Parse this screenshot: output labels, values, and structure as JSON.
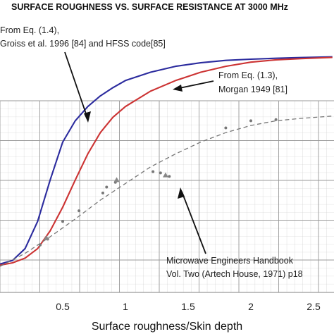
{
  "chart_data": {
    "type": "line",
    "title": "SURFACE ROUGHNESS VS. SURFACE RESISTANCE AT 3000 MHz",
    "xlabel": "Surface roughness/Skin depth",
    "ylabel": "",
    "xlim": [
      0,
      2.65
    ],
    "x_ticks": [
      "0.5",
      "1",
      "1.5",
      "2",
      "2.5"
    ],
    "grid": true,
    "series": [
      {
        "name": "From Eq. (1.4), Groiss et al. 1996 [84] and HFSS code[85]",
        "color": "#2b2b9e",
        "points": [
          [
            0.0,
            0.24
          ],
          [
            0.1,
            0.27
          ],
          [
            0.2,
            0.37
          ],
          [
            0.3,
            0.6
          ],
          [
            0.4,
            0.95
          ],
          [
            0.5,
            1.27
          ],
          [
            0.6,
            1.45
          ],
          [
            0.7,
            1.57
          ],
          [
            0.8,
            1.66
          ],
          [
            0.9,
            1.73
          ],
          [
            1.0,
            1.79
          ],
          [
            1.2,
            1.86
          ],
          [
            1.4,
            1.91
          ],
          [
            1.6,
            1.94
          ],
          [
            1.8,
            1.96
          ],
          [
            2.0,
            1.97
          ],
          [
            2.2,
            1.978
          ],
          [
            2.4,
            1.984
          ],
          [
            2.65,
            1.99
          ]
        ]
      },
      {
        "name": "From Eq. (1.3), Morgan 1949 [81]",
        "color": "#cc3333",
        "points": [
          [
            0.0,
            0.23
          ],
          [
            0.1,
            0.25
          ],
          [
            0.2,
            0.29
          ],
          [
            0.3,
            0.37
          ],
          [
            0.4,
            0.52
          ],
          [
            0.5,
            0.72
          ],
          [
            0.6,
            0.95
          ],
          [
            0.7,
            1.17
          ],
          [
            0.8,
            1.35
          ],
          [
            0.9,
            1.48
          ],
          [
            1.0,
            1.57
          ],
          [
            1.2,
            1.7
          ],
          [
            1.4,
            1.79
          ],
          [
            1.6,
            1.86
          ],
          [
            1.8,
            1.91
          ],
          [
            2.0,
            1.945
          ],
          [
            2.2,
            1.965
          ],
          [
            2.4,
            1.975
          ],
          [
            2.65,
            1.985
          ]
        ]
      },
      {
        "name": "Microwave Engineers Handbook Vol. Two (Artech House, 1971) p18",
        "color": "#777777",
        "dashed": true,
        "points": [
          [
            0.0,
            0.22
          ],
          [
            0.2,
            0.33
          ],
          [
            0.4,
            0.47
          ],
          [
            0.6,
            0.62
          ],
          [
            0.8,
            0.78
          ],
          [
            1.0,
            0.92
          ],
          [
            1.2,
            1.06
          ],
          [
            1.4,
            1.17
          ],
          [
            1.6,
            1.27
          ],
          [
            1.8,
            1.35
          ],
          [
            2.0,
            1.41
          ],
          [
            2.2,
            1.45
          ],
          [
            2.4,
            1.47
          ],
          [
            2.65,
            1.49
          ]
        ]
      }
    ],
    "measured_points": [
      [
        0.32,
        0.4
      ],
      [
        0.38,
        0.45
      ],
      [
        0.5,
        0.6
      ],
      [
        0.63,
        0.69
      ],
      [
        0.82,
        0.84
      ],
      [
        0.85,
        0.89
      ],
      [
        0.92,
        0.93
      ],
      [
        1.22,
        1.02
      ],
      [
        1.28,
        1.01
      ],
      [
        1.35,
        0.98
      ],
      [
        1.8,
        1.39
      ],
      [
        2.0,
        1.45
      ],
      [
        2.2,
        1.46
      ]
    ],
    "triangle_points": [
      [
        0.37,
        0.46
      ],
      [
        0.93,
        0.95
      ],
      [
        1.32,
        0.99
      ]
    ],
    "annotations": [
      {
        "lines": [
          "From Eq. (1.4),",
          "Groiss et al. 1996 [84] and HFSS code[85]"
        ]
      },
      {
        "lines": [
          "From Eq. (1.3),",
          "Morgan 1949 [81]"
        ]
      },
      {
        "lines": [
          "Microwave Engineers Handbook",
          "Vol. Two (Artech House, 1971) p18"
        ]
      }
    ]
  }
}
